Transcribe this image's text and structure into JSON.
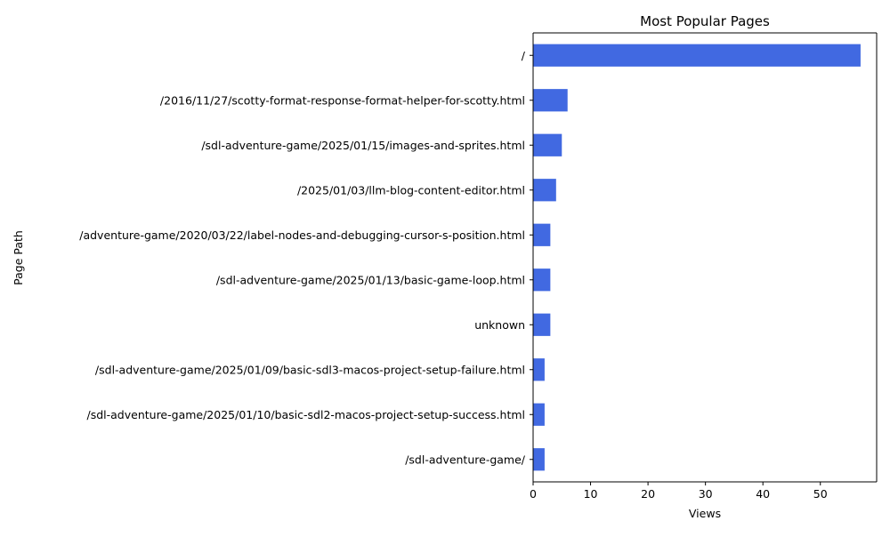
{
  "chart_data": {
    "type": "bar",
    "orientation": "horizontal",
    "title": "Most Popular Pages",
    "xlabel": "Views",
    "ylabel": "Page Path",
    "xlim": [
      0,
      59.8
    ],
    "x_ticks": [
      0,
      10,
      20,
      30,
      40,
      50
    ],
    "grid": false,
    "legend": "none",
    "bar_color": "#4169e1",
    "categories": [
      "/",
      "/2016/11/27/scotty-format-response-format-helper-for-scotty.html",
      "/sdl-adventure-game/2025/01/15/images-and-sprites.html",
      "/2025/01/03/llm-blog-content-editor.html",
      "/adventure-game/2020/03/22/label-nodes-and-debugging-cursor-s-position.html",
      "/sdl-adventure-game/2025/01/13/basic-game-loop.html",
      "unknown",
      "/sdl-adventure-game/2025/01/09/basic-sdl3-macos-project-setup-failure.html",
      "/sdl-adventure-game/2025/01/10/basic-sdl2-macos-project-setup-success.html",
      "/sdl-adventure-game/"
    ],
    "values": [
      57,
      6,
      5,
      4,
      3,
      3,
      3,
      2,
      2,
      2
    ]
  }
}
